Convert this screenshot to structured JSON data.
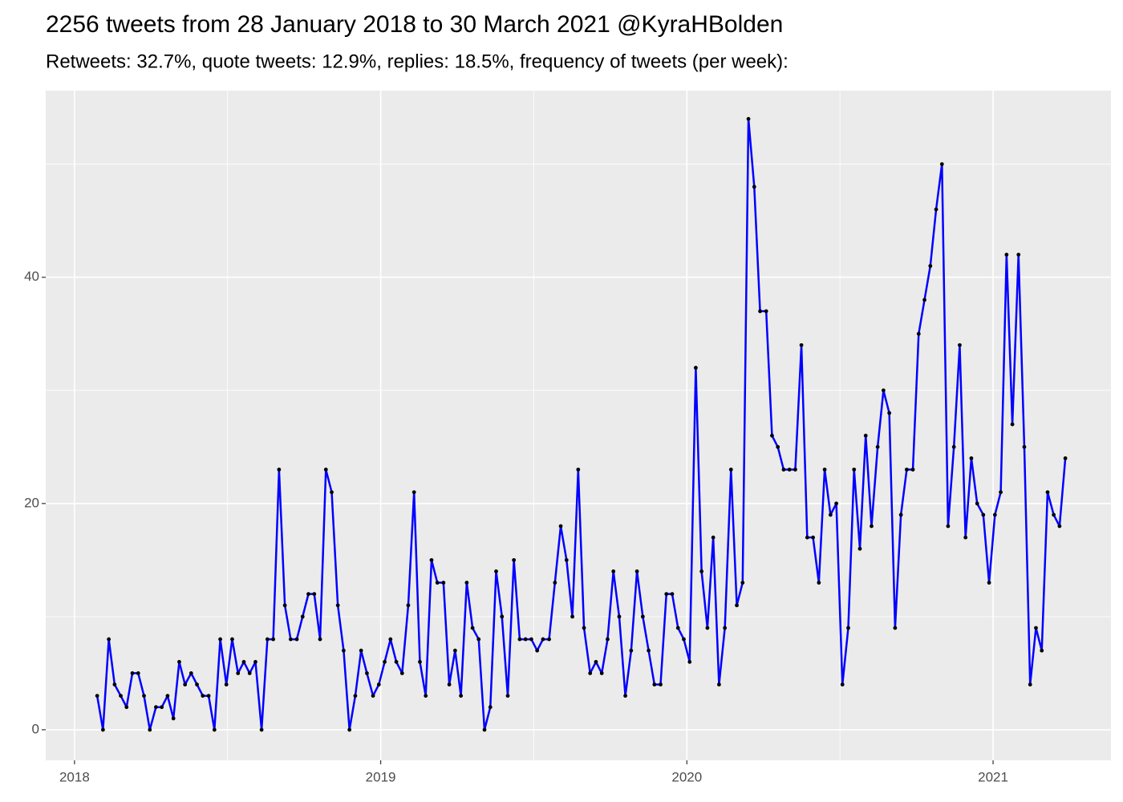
{
  "chart_data": {
    "type": "line",
    "title": "2256 tweets from 28 January 2018 to 30 March 2021 @KyraHBolden",
    "subtitle": "Retweets: 32.7%, quote tweets: 12.9%, replies: 18.5%, frequency of tweets (per week):",
    "x": [
      2018.074,
      2018.093,
      2018.112,
      2018.131,
      2018.151,
      2018.17,
      2018.189,
      2018.208,
      2018.227,
      2018.246,
      2018.266,
      2018.285,
      2018.304,
      2018.323,
      2018.342,
      2018.361,
      2018.381,
      2018.4,
      2018.419,
      2018.438,
      2018.457,
      2018.476,
      2018.496,
      2018.515,
      2018.534,
      2018.553,
      2018.572,
      2018.591,
      2018.611,
      2018.63,
      2018.649,
      2018.668,
      2018.687,
      2018.706,
      2018.726,
      2018.745,
      2018.764,
      2018.783,
      2018.802,
      2018.821,
      2018.84,
      2018.86,
      2018.879,
      2018.898,
      2018.917,
      2018.936,
      2018.955,
      2018.975,
      2018.994,
      2019.013,
      2019.032,
      2019.051,
      2019.07,
      2019.09,
      2019.109,
      2019.128,
      2019.147,
      2019.166,
      2019.185,
      2019.205,
      2019.224,
      2019.243,
      2019.262,
      2019.281,
      2019.3,
      2019.32,
      2019.339,
      2019.358,
      2019.377,
      2019.396,
      2019.415,
      2019.435,
      2019.454,
      2019.473,
      2019.492,
      2019.511,
      2019.53,
      2019.55,
      2019.569,
      2019.588,
      2019.607,
      2019.626,
      2019.645,
      2019.664,
      2019.684,
      2019.703,
      2019.722,
      2019.741,
      2019.76,
      2019.779,
      2019.799,
      2019.818,
      2019.837,
      2019.856,
      2019.875,
      2019.894,
      2019.914,
      2019.933,
      2019.952,
      2019.971,
      2019.99,
      2020.009,
      2020.029,
      2020.048,
      2020.067,
      2020.086,
      2020.105,
      2020.124,
      2020.144,
      2020.163,
      2020.182,
      2020.201,
      2020.22,
      2020.239,
      2020.259,
      2020.278,
      2020.297,
      2020.316,
      2020.335,
      2020.354,
      2020.374,
      2020.393,
      2020.412,
      2020.431,
      2020.45,
      2020.469,
      2020.488,
      2020.508,
      2020.527,
      2020.546,
      2020.565,
      2020.584,
      2020.603,
      2020.623,
      2020.642,
      2020.661,
      2020.68,
      2020.699,
      2020.718,
      2020.738,
      2020.757,
      2020.776,
      2020.795,
      2020.814,
      2020.833,
      2020.853,
      2020.872,
      2020.891,
      2020.91,
      2020.929,
      2020.948,
      2020.968,
      2020.987,
      2021.006,
      2021.025,
      2021.044,
      2021.063,
      2021.083,
      2021.102,
      2021.121,
      2021.14,
      2021.159,
      2021.178,
      2021.198,
      2021.217,
      2021.236
    ],
    "values": [
      3,
      0,
      8,
      4,
      3,
      2,
      5,
      5,
      3,
      0,
      2,
      2,
      3,
      1,
      6,
      4,
      5,
      4,
      3,
      3,
      0,
      8,
      4,
      8,
      5,
      6,
      5,
      6,
      0,
      8,
      8,
      23,
      11,
      8,
      8,
      10,
      12,
      12,
      8,
      23,
      21,
      11,
      7,
      0,
      3,
      7,
      5,
      3,
      4,
      6,
      8,
      6,
      5,
      11,
      21,
      6,
      3,
      15,
      13,
      13,
      4,
      7,
      3,
      13,
      9,
      8,
      0,
      2,
      14,
      10,
      3,
      15,
      8,
      8,
      8,
      7,
      8,
      8,
      13,
      18,
      15,
      10,
      23,
      9,
      5,
      6,
      5,
      8,
      14,
      10,
      3,
      7,
      14,
      10,
      7,
      4,
      4,
      12,
      12,
      9,
      8,
      6,
      32,
      14,
      9,
      17,
      4,
      9,
      23,
      11,
      13,
      54,
      48,
      37,
      37,
      26,
      25,
      23,
      23,
      23,
      34,
      17,
      17,
      13,
      23,
      19,
      20,
      4,
      9,
      23,
      16,
      26,
      18,
      25,
      30,
      28,
      9,
      19,
      23,
      23,
      35,
      38,
      41,
      46,
      50,
      18,
      25,
      34,
      17,
      24,
      20,
      19,
      13,
      19,
      21,
      42,
      27,
      42,
      25,
      4,
      9,
      7,
      21,
      19,
      18,
      24
    ],
    "color": "#0000ff",
    "point_color": "#000000",
    "xlim": [
      2017.906,
      2021.385
    ],
    "xticks": [
      2018,
      2019,
      2020,
      2021
    ],
    "x_minor_breaks": [
      2018.5,
      2019.5,
      2020.5
    ],
    "ylim": [
      -2.7,
      56.5
    ],
    "yticks": [
      0,
      20,
      40
    ],
    "y_minor_breaks": [
      10,
      30,
      50
    ],
    "grid": true,
    "panel_background": "#ebebeb"
  }
}
